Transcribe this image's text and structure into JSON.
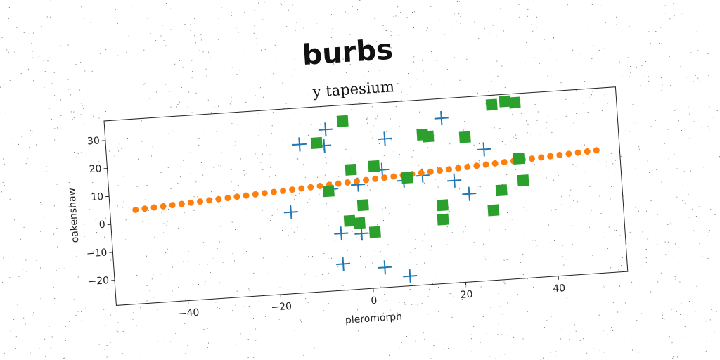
{
  "chart_data": {
    "type": "scatter",
    "title": "burbs",
    "subtitle": "y tapesium",
    "xlabel": "pleromorph",
    "ylabel": "oakenshaw",
    "xlim": [
      -55.5,
      55
    ],
    "ylim": [
      -29,
      37
    ],
    "xticks": [
      {
        "value": -40,
        "label": "−40"
      },
      {
        "value": -20,
        "label": "−20"
      },
      0,
      20,
      40
    ],
    "yticks": [
      {
        "value": -20,
        "label": "−20"
      },
      {
        "value": -10,
        "label": "−10"
      },
      0,
      10,
      20,
      30
    ],
    "grid": false,
    "series": [
      {
        "marker": "plus",
        "color": "#1f77b4",
        "x": [
          -13.8,
          -8.0,
          -8.5,
          4.6,
          17.1,
          3.6,
          -1.8,
          8.1,
          12.2,
          19.0,
          22.0,
          25.8,
          -16.6,
          -7.6,
          -6.1,
          -1.7,
          -6.1,
          2.8,
          8.1
        ],
        "values": [
          24.0,
          28.7,
          23.0,
          24.0,
          30.0,
          13.0,
          8.3,
          8.7,
          10.0,
          7.5,
          2.4,
          17.9,
          0.1,
          7.4,
          -8.7,
          -9.2,
          -19.6,
          -21.8,
          -25.5
        ]
      },
      {
        "marker": "dot",
        "color": "#ff7f0e",
        "x": [
          -50,
          -48,
          -46,
          -44,
          -42,
          -40,
          -38,
          -36,
          -34,
          -32,
          -30,
          -28,
          -26,
          -24,
          -22,
          -20,
          -18,
          -16,
          -14,
          -12,
          -10,
          -8,
          -6,
          -4,
          -2,
          0,
          2,
          4,
          6,
          8,
          10,
          12,
          14,
          16,
          18,
          20,
          22,
          24,
          26,
          28,
          30,
          32,
          34,
          36,
          38,
          40,
          42,
          44,
          46,
          48,
          50
        ],
        "values": [
          4.6,
          4.81,
          5.01,
          5.22,
          5.42,
          5.63,
          5.84,
          6.04,
          6.25,
          6.45,
          6.66,
          6.87,
          7.07,
          7.28,
          7.48,
          7.69,
          7.9,
          8.1,
          8.31,
          8.51,
          8.72,
          8.93,
          9.13,
          9.34,
          9.54,
          9.75,
          9.96,
          10.16,
          10.37,
          10.57,
          10.78,
          10.99,
          11.19,
          11.4,
          11.6,
          11.81,
          12.02,
          12.22,
          12.43,
          12.63,
          12.84,
          13.05,
          13.25,
          13.46,
          13.66,
          13.87,
          14.08,
          14.28,
          14.49,
          14.69,
          14.9
        ]
      },
      {
        "marker": "square",
        "color": "#2ca02c",
        "x": [
          -4.2,
          -10.1,
          -3.1,
          -8.2,
          1.9,
          8.9,
          12.8,
          14.0,
          21.9,
          28.1,
          31.0,
          33.1,
          33.2,
          29.0,
          27.0,
          33.8,
          16.1,
          16.0,
          -1.0,
          -4.1,
          -2.0,
          1.2
        ],
        "values": [
          31.3,
          24.1,
          13.8,
          6.7,
          14.5,
          9.6,
          24.6,
          23.8,
          22.7,
          33.6,
          34.5,
          33.8,
          13.8,
          2.9,
          -4.0,
          5.9,
          -1.0,
          -6.1,
          0.9,
          -4.4,
          -5.4,
          -9.0
        ]
      }
    ]
  }
}
